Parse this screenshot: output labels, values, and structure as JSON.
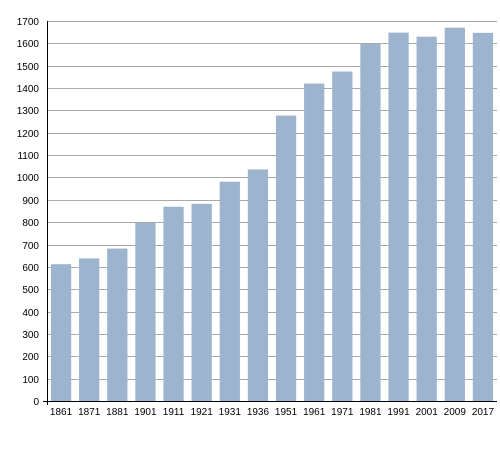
{
  "chart_data": {
    "type": "bar",
    "title": "",
    "xlabel": "",
    "ylabel": "",
    "categories": [
      "1861",
      "1871",
      "1881",
      "1901",
      "1911",
      "1921",
      "1931",
      "1936",
      "1951",
      "1961",
      "1971",
      "1981",
      "1991",
      "2001",
      "2009",
      "2017"
    ],
    "values": [
      612,
      638,
      682,
      797,
      869,
      882,
      981,
      1036,
      1277,
      1420,
      1474,
      1597,
      1648,
      1630,
      1670,
      1647
    ],
    "ylim": [
      0,
      1700
    ],
    "y_ticks": [
      0,
      100,
      200,
      300,
      400,
      500,
      600,
      700,
      800,
      900,
      1000,
      1100,
      1200,
      1300,
      1400,
      1500,
      1600,
      1700
    ],
    "grid": true,
    "legend": "none",
    "bar_color": "#9db4cf",
    "grid_color": "#a9a9a9"
  }
}
